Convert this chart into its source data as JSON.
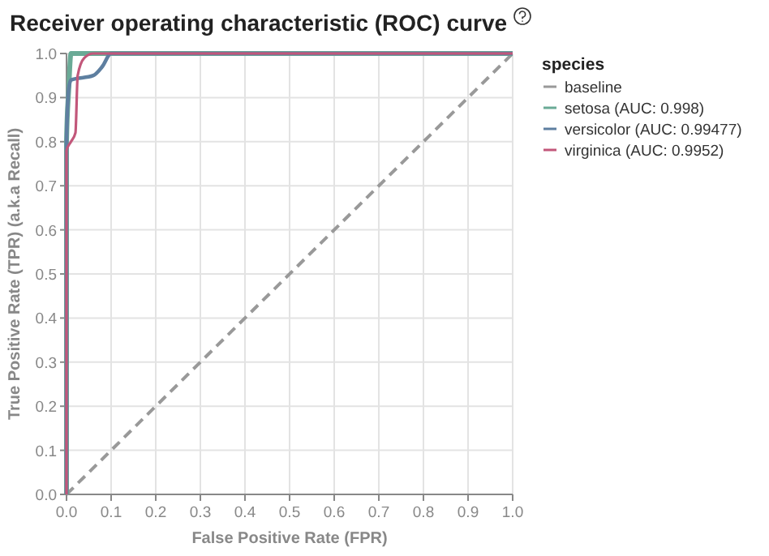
{
  "chart_data": {
    "type": "line",
    "title": "Receiver operating characteristic (ROC) curve",
    "xlabel": "False Positive Rate (FPR)",
    "ylabel": "True Positive Rate (TPR) (a.k.a Recall)",
    "legend_title": "species",
    "legend": "right",
    "grid": true,
    "xlim": [
      0,
      1
    ],
    "ylim": [
      0,
      1
    ],
    "xticks": [
      {
        "value": 0,
        "label": "0.0"
      },
      0.1,
      0.2,
      0.3,
      0.4,
      0.5,
      0.6,
      0.7,
      0.8,
      0.9,
      {
        "value": 1,
        "label": "1.0"
      }
    ],
    "yticks": [
      {
        "value": 0,
        "label": "0.0"
      },
      0.1,
      0.2,
      0.3,
      0.4,
      0.5,
      0.6,
      0.7,
      0.8,
      0.9,
      {
        "value": 1,
        "label": "1.0"
      }
    ],
    "series": [
      {
        "name": "baseline",
        "color": "#999999",
        "line_style": "dashed",
        "x": [
          0,
          1
        ],
        "values": [
          0,
          1
        ]
      },
      {
        "name": "setosa (AUC: 0.998)",
        "color": "#6aaa96",
        "x": [
          0,
          0,
          0.005,
          0.01,
          1
        ],
        "values": [
          0,
          0.8,
          0.92,
          1,
          1
        ]
      },
      {
        "name": "versicolor (AUC: 0.99477)",
        "color": "#5e7fa0",
        "x": [
          0,
          0,
          0.005,
          0.01,
          0.06,
          0.08,
          0.1,
          1
        ],
        "values": [
          0,
          0.8,
          0.92,
          0.94,
          0.95,
          0.97,
          1,
          1
        ]
      },
      {
        "name": "virginica (AUC: 0.9952)",
        "color": "#c2577a",
        "x": [
          0,
          0,
          0.01,
          0.02,
          0.025,
          0.04,
          0.06,
          1
        ],
        "values": [
          0,
          0.78,
          0.8,
          0.82,
          0.95,
          0.99,
          1,
          1
        ]
      }
    ]
  }
}
